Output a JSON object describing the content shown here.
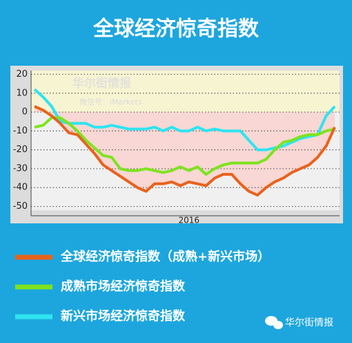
{
  "chart_data": {
    "type": "line",
    "title": "全球经济惊奇指数",
    "categories": [
      null,
      null,
      null,
      null,
      null,
      null,
      null,
      null,
      null,
      null,
      null,
      null,
      null,
      null,
      null,
      null,
      null,
      null,
      "2016",
      null,
      null,
      null,
      null,
      null,
      null,
      null,
      null,
      null,
      null,
      null,
      null,
      null,
      null,
      null,
      null,
      null
    ],
    "series": [
      {
        "name": "全球经济惊奇指数（成熟+新兴市场）",
        "color": "#e8621c",
        "values": [
          3,
          1,
          -2,
          -6,
          -11,
          -12,
          -17,
          -22,
          -28,
          -31,
          -34,
          -37,
          -40,
          -42,
          -38,
          -38,
          -37,
          -39,
          -37,
          -38,
          -39,
          -35,
          -33,
          -33,
          -38,
          -42,
          -44,
          -40,
          -37,
          -35,
          -32,
          -30,
          -28,
          -24,
          -18,
          -8
        ]
      },
      {
        "name": "成熟市场经济惊奇指数",
        "color": "#7ee31f",
        "values": [
          -8,
          -7,
          -3,
          -3,
          -6,
          -10,
          -15,
          -19,
          -23,
          -24,
          -30,
          -31,
          -31,
          -30,
          -31,
          -32,
          -31,
          -29,
          -31,
          -29,
          -33,
          -30,
          -28,
          -27,
          -27,
          -27,
          -27,
          -25,
          -20,
          -16,
          -15,
          -13,
          -12,
          -12,
          -10,
          -9
        ]
      },
      {
        "name": "新兴市场经济惊奇指数",
        "color": "#2fe4f0",
        "values": [
          12,
          8,
          3,
          -5,
          -6,
          -6,
          -6,
          -8,
          -8,
          -7,
          -8,
          -9,
          -9,
          -9,
          -8,
          -10,
          -8,
          -10,
          -10,
          -8,
          -10,
          -9,
          -10,
          -10,
          -10,
          -15,
          -20,
          -20,
          -19,
          -18,
          -16,
          -14,
          -13,
          -12,
          -2,
          3
        ]
      }
    ],
    "ylim": [
      -52,
      22
    ],
    "yticks": [
      20,
      10,
      0,
      -10,
      -20,
      -30,
      -40,
      -50
    ],
    "grid": true
  },
  "watermark": {
    "name": "华尔街情报",
    "account": "微信号：iMarkets"
  },
  "footer": "华尔街情报"
}
